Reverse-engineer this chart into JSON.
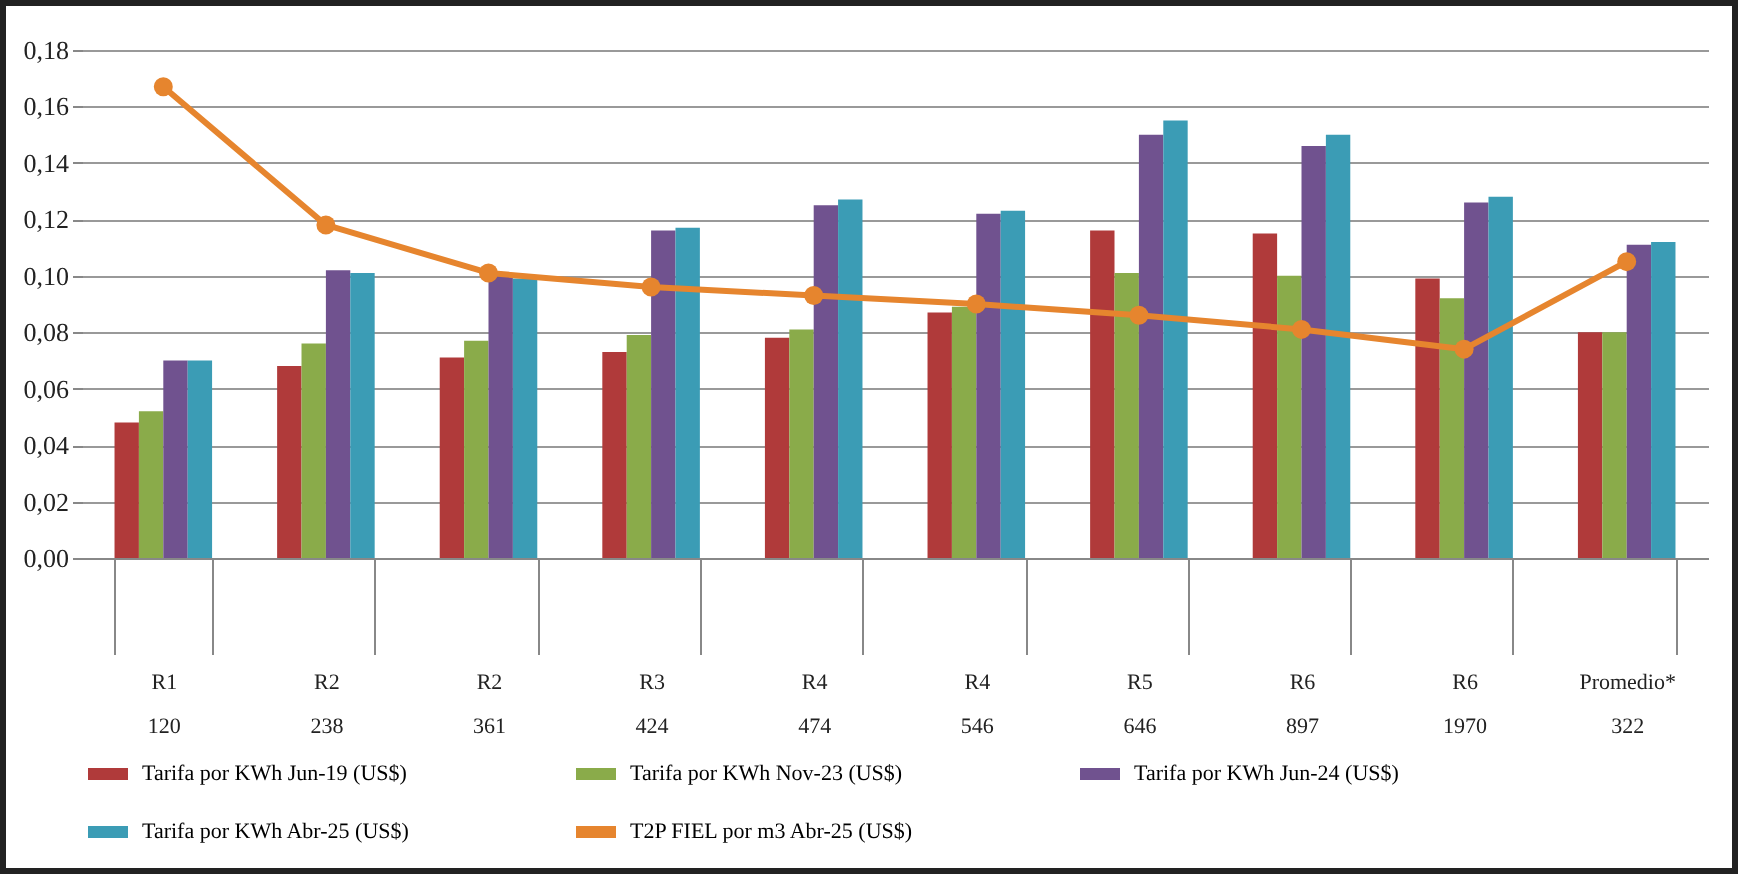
{
  "chart_data": {
    "type": "bar",
    "categories": [
      "R1\n120",
      "R2\n238",
      "R2\n361",
      "R3\n424",
      "R4\n474",
      "R4\n546",
      "R5\n646",
      "R6\n897",
      "R6\n1970",
      "Promedio*\n322"
    ],
    "series": [
      {
        "name": "Tarifa por KWh Jun-19 (US$)",
        "color": "#b03a3a",
        "values": [
          0.048,
          0.068,
          0.071,
          0.073,
          0.078,
          0.087,
          0.116,
          0.115,
          0.099,
          0.08
        ]
      },
      {
        "name": "Tarifa por KWh Nov-23 (US$)",
        "color": "#8aab4a",
        "values": [
          0.052,
          0.076,
          0.077,
          0.079,
          0.081,
          0.089,
          0.101,
          0.1,
          0.092,
          0.08
        ]
      },
      {
        "name": "Tarifa por KWh Jun-24 (US$)",
        "color": "#70528f",
        "values": [
          0.07,
          0.102,
          0.1,
          0.116,
          0.125,
          0.122,
          0.15,
          0.146,
          0.126,
          0.111
        ]
      },
      {
        "name": "Tarifa por KWh Abr-25 (US$)",
        "color": "#3b9cb5",
        "values": [
          0.07,
          0.101,
          0.099,
          0.117,
          0.127,
          0.123,
          0.155,
          0.15,
          0.128,
          0.112
        ]
      },
      {
        "name": "T2P FIEL por m3 Abr-25 (US$)",
        "color": "#e6852e",
        "type": "line",
        "values": [
          0.167,
          0.118,
          0.101,
          0.096,
          0.093,
          0.09,
          0.086,
          0.081,
          0.074,
          0.105
        ]
      }
    ],
    "ylim": [
      0,
      0.18
    ],
    "yticks": [
      {
        "value": 0,
        "label": "0,00"
      },
      {
        "value": 0.02,
        "label": "0,02"
      },
      {
        "value": 0.04,
        "label": "0,04"
      },
      {
        "value": 0.06,
        "label": "0,06"
      },
      {
        "value": 0.08,
        "label": "0,08"
      },
      {
        "value": 0.1,
        "label": "0,10"
      },
      {
        "value": 0.12,
        "label": "0,12"
      },
      {
        "value": 0.14,
        "label": "0,14"
      },
      {
        "value": 0.16,
        "label": "0,16"
      },
      {
        "value": 0.18,
        "label": "0,18"
      }
    ],
    "grid": "y",
    "legend": "bottom",
    "marker": "circle",
    "line_style": "solid"
  }
}
